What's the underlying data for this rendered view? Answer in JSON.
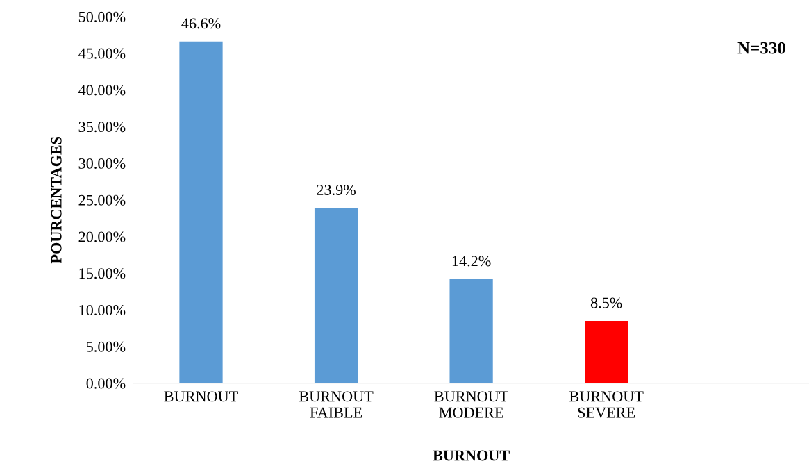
{
  "chart_data": {
    "type": "bar",
    "xlabel": "BURNOUT",
    "ylabel": "POURCENTAGES",
    "categories": [
      "BURNOUT",
      "BURNOUT\nFAIBLE",
      "BURNOUT\nMODERE",
      "BURNOUT\nSEVERE",
      null
    ],
    "values": [
      46.6,
      23.9,
      14.2,
      8.5,
      null
    ],
    "colors": [
      "#5b9bd5",
      "#5b9bd5",
      "#5b9bd5",
      "#ff0000",
      "#5b9bd5"
    ],
    "ylim": [
      0,
      50
    ],
    "yticks": [
      {
        "value": 0,
        "label": "0.00%"
      },
      {
        "value": 5,
        "label": "5.00%"
      },
      {
        "value": 10,
        "label": "10.00%"
      },
      {
        "value": 15,
        "label": "15.00%"
      },
      {
        "value": 20,
        "label": "20.00%"
      },
      {
        "value": 25,
        "label": "25.00%"
      },
      {
        "value": 30,
        "label": "30.00%"
      },
      {
        "value": 35,
        "label": "35.00%"
      },
      {
        "value": 40,
        "label": "40.00%"
      },
      {
        "value": 45,
        "label": "45.00%"
      },
      {
        "value": 50,
        "label": "50.00%"
      }
    ],
    "value_labels": [
      "46.6%",
      "23.9%",
      "14.2%",
      "8.5%",
      null
    ],
    "annotations": [
      "N=330"
    ],
    "grid": false,
    "legend": false
  }
}
